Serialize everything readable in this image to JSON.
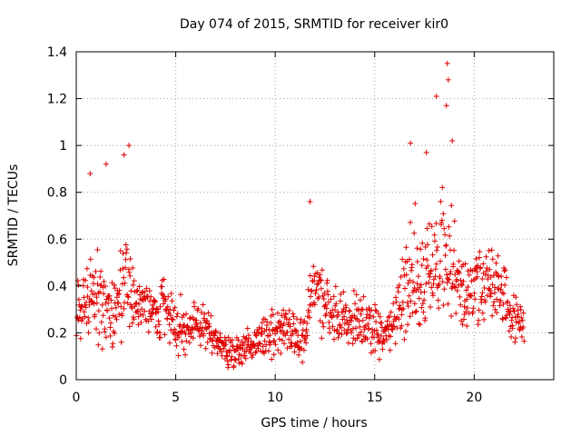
{
  "chart_data": {
    "type": "scatter",
    "title": "Day 074 of 2015, SRMTID for receiver kir0",
    "xlabel": "GPS time / hours",
    "ylabel": "SRMTID / TECUs",
    "xlim": [
      0,
      24
    ],
    "ylim": [
      0,
      1.4
    ],
    "x_ticks": [
      0,
      5,
      10,
      15,
      20
    ],
    "x_tick_labels": [
      "0",
      "5",
      "10",
      "15",
      "20"
    ],
    "y_ticks": [
      0,
      0.2,
      0.4,
      0.6,
      0.8,
      1.0,
      1.2,
      1.4
    ],
    "y_tick_labels": [
      "0",
      "0.2",
      "0.4",
      "0.6",
      "0.8",
      "1",
      "1.2",
      "1.4"
    ],
    "grid": true,
    "marker": "+",
    "marker_color": "#e00000",
    "series": [
      {
        "name": "SRMTID",
        "profile_hours": [
          0,
          0.5,
          1,
          1.5,
          2,
          2.5,
          3,
          3.5,
          4,
          4.5,
          5,
          5.5,
          6,
          6.5,
          7,
          7.5,
          8,
          8.5,
          9,
          9.5,
          10,
          10.5,
          11,
          11.5,
          11.8,
          12,
          12.5,
          13,
          13.5,
          14,
          14.5,
          15,
          15.5,
          16,
          16.5,
          17,
          17.5,
          18,
          18.5,
          19,
          19.5,
          20,
          20.5,
          21,
          21.5,
          22,
          22.5
        ],
        "profile_median": [
          0.28,
          0.32,
          0.36,
          0.3,
          0.3,
          0.42,
          0.34,
          0.3,
          0.28,
          0.32,
          0.22,
          0.2,
          0.24,
          0.22,
          0.18,
          0.13,
          0.12,
          0.14,
          0.16,
          0.18,
          0.2,
          0.22,
          0.2,
          0.18,
          0.4,
          0.38,
          0.32,
          0.28,
          0.26,
          0.25,
          0.24,
          0.22,
          0.18,
          0.26,
          0.4,
          0.46,
          0.44,
          0.48,
          0.55,
          0.45,
          0.38,
          0.35,
          0.45,
          0.4,
          0.35,
          0.28,
          0.24
        ],
        "profile_spread": [
          0.12,
          0.15,
          0.18,
          0.14,
          0.16,
          0.22,
          0.12,
          0.1,
          0.1,
          0.12,
          0.1,
          0.09,
          0.09,
          0.08,
          0.07,
          0.05,
          0.05,
          0.06,
          0.07,
          0.08,
          0.08,
          0.08,
          0.08,
          0.08,
          0.15,
          0.14,
          0.12,
          0.11,
          0.1,
          0.1,
          0.1,
          0.09,
          0.08,
          0.12,
          0.2,
          0.24,
          0.22,
          0.25,
          0.3,
          0.18,
          0.15,
          0.14,
          0.16,
          0.14,
          0.12,
          0.1,
          0.1
        ],
        "peaks": [
          {
            "x": 0.7,
            "y": 0.88
          },
          {
            "x": 1.5,
            "y": 0.92
          },
          {
            "x": 2.4,
            "y": 0.96
          },
          {
            "x": 2.65,
            "y": 1.0
          },
          {
            "x": 11.75,
            "y": 0.76
          },
          {
            "x": 16.8,
            "y": 1.01
          },
          {
            "x": 17.6,
            "y": 0.97
          },
          {
            "x": 18.1,
            "y": 1.21
          },
          {
            "x": 18.65,
            "y": 1.35
          },
          {
            "x": 18.7,
            "y": 1.28
          },
          {
            "x": 18.6,
            "y": 1.17
          },
          {
            "x": 18.9,
            "y": 1.02
          }
        ]
      }
    ]
  }
}
